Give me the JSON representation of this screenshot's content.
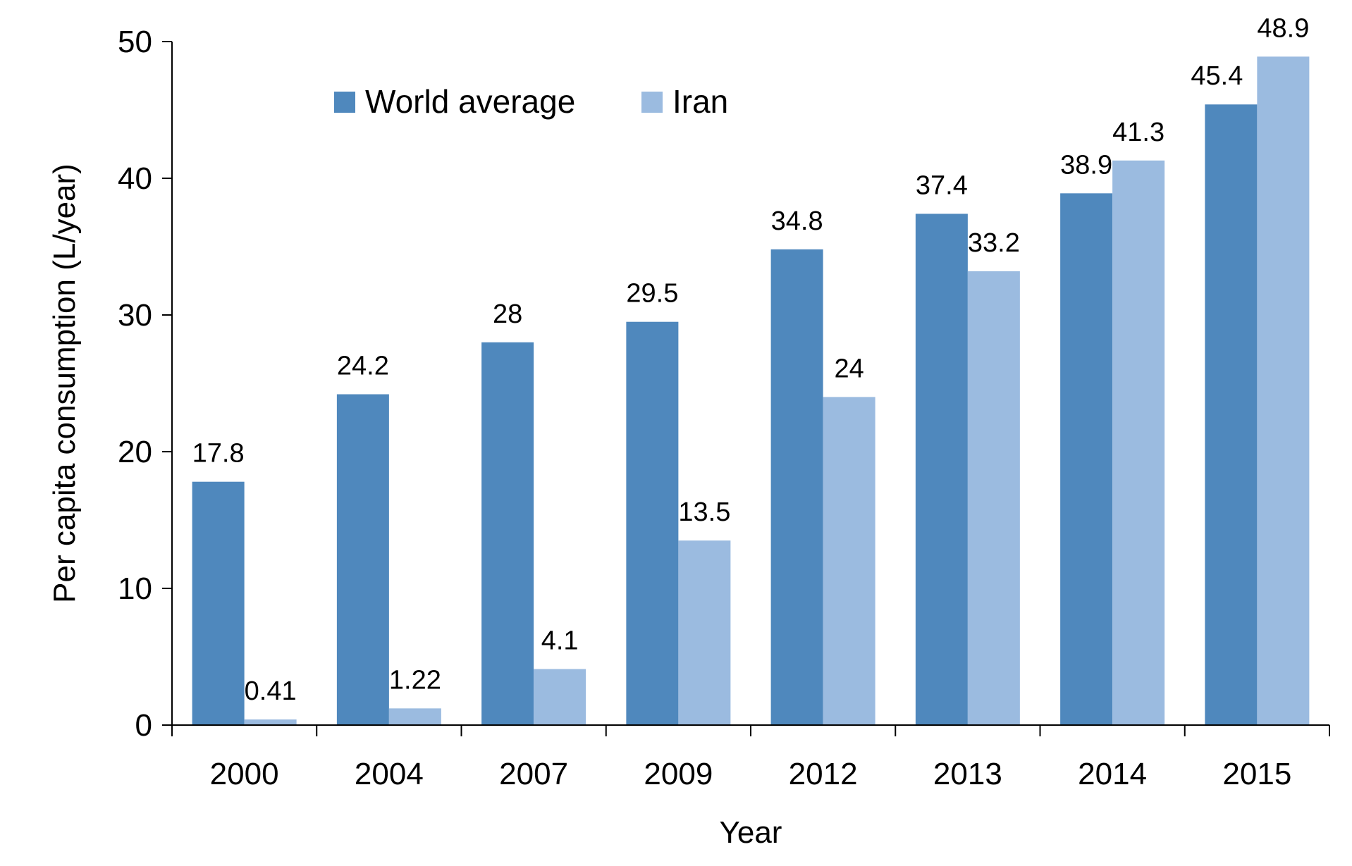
{
  "chart_data": {
    "type": "bar",
    "title": "",
    "xlabel": "Year",
    "ylabel": "Per capita consumption (L/year)",
    "ylim": [
      0,
      50
    ],
    "yticks": [
      0,
      10,
      20,
      30,
      40,
      50
    ],
    "grid": false,
    "legend_position": "top-left",
    "categories": [
      "2000",
      "2004",
      "2007",
      "2009",
      "2012",
      "2013",
      "2014",
      "2015"
    ],
    "series": [
      {
        "name": "World average",
        "color": "#4f88bd",
        "values": [
          17.8,
          24.2,
          28,
          29.5,
          34.8,
          37.4,
          38.9,
          45.4
        ],
        "labels": [
          "17.8",
          "24.2",
          "28",
          "29.5",
          "34.8",
          "37.4",
          "38.9",
          "45.4"
        ]
      },
      {
        "name": "Iran",
        "color": "#9bbbe0",
        "values": [
          0.41,
          1.22,
          4.1,
          13.5,
          24,
          33.2,
          41.3,
          48.9
        ],
        "labels": [
          "0.41",
          "1.22",
          "4.1",
          "13.5",
          "24",
          "33.2",
          "41.3",
          "48.9"
        ]
      }
    ]
  }
}
